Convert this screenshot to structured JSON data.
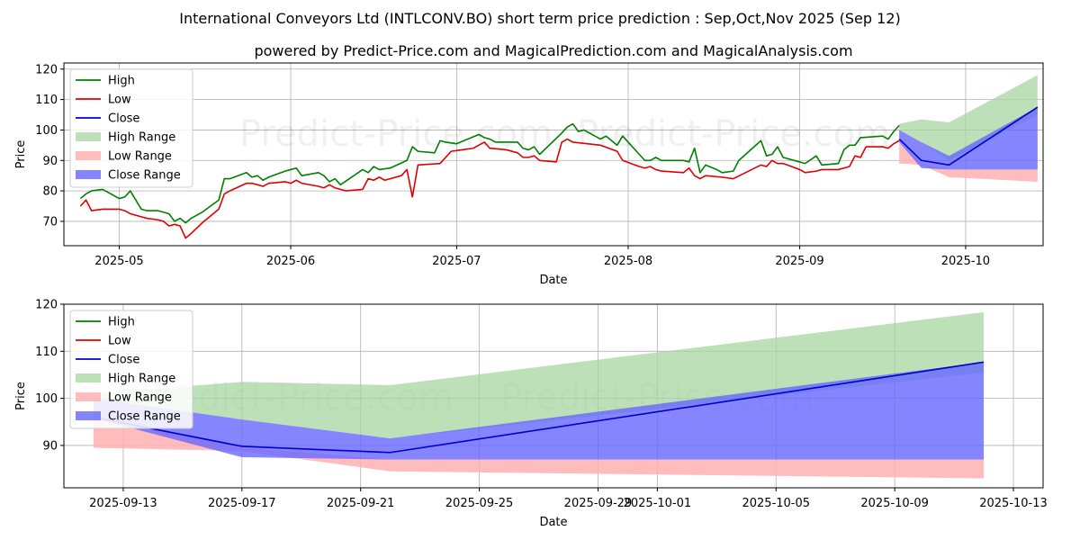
{
  "title": "International Conveyors Ltd (INTLCONV.BO) short term price prediction : Sep,Oct,Nov 2025 (Sep 12)",
  "subtitle": "powered by Predict-Price.com and MagicalPrediction.com and MagicalAnalysis.com",
  "watermark": "Predict-Price.com",
  "colors": {
    "high": "#008000",
    "low": "#e00000",
    "close": "#0000cc",
    "high_range": "#a8d5a2",
    "low_range": "#ffb0b0",
    "close_range": "#6666ff"
  },
  "chart_data": [
    {
      "type": "line",
      "name": "history",
      "xlabel": "Date",
      "ylabel": "Price",
      "xlim": [
        "2025-04-21",
        "2025-10-15"
      ],
      "ylim": [
        62,
        122
      ],
      "yticks": [
        70,
        80,
        90,
        100,
        110,
        120
      ],
      "xticks": [
        {
          "date": "2025-05-01",
          "label": "2025-05"
        },
        {
          "date": "2025-06-01",
          "label": "2025-06"
        },
        {
          "date": "2025-07-01",
          "label": "2025-07"
        },
        {
          "date": "2025-08-01",
          "label": "2025-08"
        },
        {
          "date": "2025-09-01",
          "label": "2025-09"
        },
        {
          "date": "2025-10-01",
          "label": "2025-10"
        }
      ],
      "legend": [
        "High",
        "Low",
        "Close",
        "High Range",
        "Low Range",
        "Close Range"
      ],
      "legend_position": "top-left",
      "grid": true,
      "high": [
        [
          "2025-04-24",
          77.5
        ],
        [
          "2025-04-25",
          79
        ],
        [
          "2025-04-26",
          80
        ],
        [
          "2025-04-28",
          80.5
        ],
        [
          "2025-04-29",
          79.5
        ],
        [
          "2025-05-01",
          77.5
        ],
        [
          "2025-05-02",
          78
        ],
        [
          "2025-05-03",
          80
        ],
        [
          "2025-05-05",
          74
        ],
        [
          "2025-05-06",
          73.5
        ],
        [
          "2025-05-08",
          73.5
        ],
        [
          "2025-05-09",
          73
        ],
        [
          "2025-05-10",
          72.5
        ],
        [
          "2025-05-11",
          70
        ],
        [
          "2025-05-12",
          71
        ],
        [
          "2025-05-13",
          69.5
        ],
        [
          "2025-05-14",
          71
        ],
        [
          "2025-05-16",
          73
        ],
        [
          "2025-05-19",
          77
        ],
        [
          "2025-05-20",
          84
        ],
        [
          "2025-05-21",
          84
        ],
        [
          "2025-05-24",
          86
        ],
        [
          "2025-05-25",
          84.5
        ],
        [
          "2025-05-26",
          85
        ],
        [
          "2025-05-27",
          83.5
        ],
        [
          "2025-05-28",
          84.5
        ],
        [
          "2025-05-31",
          86.5
        ],
        [
          "2025-06-01",
          87
        ],
        [
          "2025-06-02",
          87.5
        ],
        [
          "2025-06-03",
          85
        ],
        [
          "2025-06-06",
          86
        ],
        [
          "2025-06-07",
          85
        ],
        [
          "2025-06-08",
          83
        ],
        [
          "2025-06-09",
          84
        ],
        [
          "2025-06-10",
          82
        ],
        [
          "2025-06-14",
          87
        ],
        [
          "2025-06-15",
          86
        ],
        [
          "2025-06-16",
          88
        ],
        [
          "2025-06-17",
          87
        ],
        [
          "2025-06-19",
          87.5
        ],
        [
          "2025-06-22",
          90
        ],
        [
          "2025-06-23",
          94.5
        ],
        [
          "2025-06-24",
          93
        ],
        [
          "2025-06-27",
          92.5
        ],
        [
          "2025-06-28",
          96.5
        ],
        [
          "2025-06-29",
          96
        ],
        [
          "2025-07-01",
          95.5
        ],
        [
          "2025-07-05",
          98.5
        ],
        [
          "2025-07-06",
          97.5
        ],
        [
          "2025-07-07",
          97
        ],
        [
          "2025-07-08",
          96
        ],
        [
          "2025-07-10",
          96
        ],
        [
          "2025-07-12",
          96
        ],
        [
          "2025-07-13",
          94
        ],
        [
          "2025-07-14",
          93.5
        ],
        [
          "2025-07-15",
          94.5
        ],
        [
          "2025-07-16",
          92
        ],
        [
          "2025-07-20",
          99
        ],
        [
          "2025-07-21",
          101
        ],
        [
          "2025-07-22",
          102
        ],
        [
          "2025-07-23",
          99.5
        ],
        [
          "2025-07-24",
          100
        ],
        [
          "2025-07-27",
          97
        ],
        [
          "2025-07-28",
          98
        ],
        [
          "2025-07-30",
          95
        ],
        [
          "2025-07-31",
          98
        ],
        [
          "2025-08-03",
          92
        ],
        [
          "2025-08-04",
          90
        ],
        [
          "2025-08-05",
          90
        ],
        [
          "2025-08-06",
          91
        ],
        [
          "2025-08-07",
          90
        ],
        [
          "2025-08-11",
          90
        ],
        [
          "2025-08-12",
          89.5
        ],
        [
          "2025-08-13",
          94
        ],
        [
          "2025-08-14",
          86
        ],
        [
          "2025-08-15",
          88.5
        ],
        [
          "2025-08-17",
          87
        ],
        [
          "2025-08-18",
          86
        ],
        [
          "2025-08-20",
          86.5
        ],
        [
          "2025-08-21",
          90
        ],
        [
          "2025-08-25",
          96.5
        ],
        [
          "2025-08-26",
          91.5
        ],
        [
          "2025-08-27",
          92
        ],
        [
          "2025-08-28",
          94.5
        ],
        [
          "2025-08-29",
          91
        ],
        [
          "2025-09-02",
          89
        ],
        [
          "2025-09-04",
          91.5
        ],
        [
          "2025-09-05",
          88.5
        ],
        [
          "2025-09-08",
          89
        ],
        [
          "2025-09-09",
          93.5
        ],
        [
          "2025-09-10",
          95
        ],
        [
          "2025-09-11",
          95
        ],
        [
          "2025-09-12",
          97.5
        ],
        [
          "2025-09-16",
          98
        ],
        [
          "2025-09-17",
          97
        ],
        [
          "2025-09-18",
          99.5
        ],
        [
          "2025-09-19",
          101.5
        ]
      ],
      "low": [
        [
          "2025-04-24",
          75
        ],
        [
          "2025-04-25",
          77
        ],
        [
          "2025-04-26",
          73.5
        ],
        [
          "2025-04-28",
          74
        ],
        [
          "2025-04-29",
          74
        ],
        [
          "2025-05-01",
          74
        ],
        [
          "2025-05-02",
          73.5
        ],
        [
          "2025-05-03",
          72.5
        ],
        [
          "2025-05-05",
          71.5
        ],
        [
          "2025-05-06",
          71
        ],
        [
          "2025-05-08",
          70.5
        ],
        [
          "2025-05-09",
          70
        ],
        [
          "2025-05-10",
          68.5
        ],
        [
          "2025-05-11",
          69
        ],
        [
          "2025-05-12",
          68.5
        ],
        [
          "2025-05-13",
          64.5
        ],
        [
          "2025-05-14",
          66
        ],
        [
          "2025-05-16",
          69.5
        ],
        [
          "2025-05-19",
          74
        ],
        [
          "2025-05-20",
          79
        ],
        [
          "2025-05-21",
          80
        ],
        [
          "2025-05-24",
          82.5
        ],
        [
          "2025-05-25",
          82.5
        ],
        [
          "2025-05-26",
          82
        ],
        [
          "2025-05-27",
          81.5
        ],
        [
          "2025-05-28",
          82.5
        ],
        [
          "2025-05-31",
          83
        ],
        [
          "2025-06-01",
          82.5
        ],
        [
          "2025-06-02",
          83.5
        ],
        [
          "2025-06-03",
          82.5
        ],
        [
          "2025-06-06",
          81.5
        ],
        [
          "2025-06-07",
          81
        ],
        [
          "2025-06-08",
          82
        ],
        [
          "2025-06-09",
          81
        ],
        [
          "2025-06-10",
          80.5
        ],
        [
          "2025-06-11",
          80
        ],
        [
          "2025-06-14",
          80.5
        ],
        [
          "2025-06-15",
          84
        ],
        [
          "2025-06-16",
          83.5
        ],
        [
          "2025-06-17",
          84.5
        ],
        [
          "2025-06-18",
          83.5
        ],
        [
          "2025-06-21",
          85
        ],
        [
          "2025-06-22",
          87
        ],
        [
          "2025-06-23",
          78
        ],
        [
          "2025-06-24",
          88.5
        ],
        [
          "2025-06-28",
          89
        ],
        [
          "2025-06-30",
          93
        ],
        [
          "2025-07-02",
          93.5
        ],
        [
          "2025-07-04",
          94
        ],
        [
          "2025-07-05",
          95
        ],
        [
          "2025-07-06",
          96
        ],
        [
          "2025-07-07",
          94
        ],
        [
          "2025-07-10",
          93.5
        ],
        [
          "2025-07-12",
          92.5
        ],
        [
          "2025-07-13",
          91
        ],
        [
          "2025-07-14",
          91
        ],
        [
          "2025-07-15",
          91.5
        ],
        [
          "2025-07-16",
          90
        ],
        [
          "2025-07-19",
          89.5
        ],
        [
          "2025-07-20",
          96
        ],
        [
          "2025-07-21",
          97
        ],
        [
          "2025-07-22",
          96
        ],
        [
          "2025-07-27",
          95
        ],
        [
          "2025-07-30",
          93
        ],
        [
          "2025-07-31",
          90
        ],
        [
          "2025-08-03",
          88
        ],
        [
          "2025-08-04",
          87.5
        ],
        [
          "2025-08-05",
          88
        ],
        [
          "2025-08-06",
          87
        ],
        [
          "2025-08-07",
          86.5
        ],
        [
          "2025-08-11",
          86
        ],
        [
          "2025-08-12",
          87.5
        ],
        [
          "2025-08-13",
          85
        ],
        [
          "2025-08-14",
          84
        ],
        [
          "2025-08-15",
          85
        ],
        [
          "2025-08-18",
          84.5
        ],
        [
          "2025-08-20",
          84
        ],
        [
          "2025-08-25",
          88.5
        ],
        [
          "2025-08-26",
          88
        ],
        [
          "2025-08-27",
          90
        ],
        [
          "2025-08-28",
          89
        ],
        [
          "2025-08-29",
          89
        ],
        [
          "2025-09-01",
          87
        ],
        [
          "2025-09-02",
          86
        ],
        [
          "2025-09-04",
          86.5
        ],
        [
          "2025-09-05",
          87
        ],
        [
          "2025-09-08",
          87
        ],
        [
          "2025-09-09",
          87.5
        ],
        [
          "2025-09-10",
          88
        ],
        [
          "2025-09-11",
          91.5
        ],
        [
          "2025-09-12",
          91
        ],
        [
          "2025-09-13",
          94.5
        ],
        [
          "2025-09-16",
          94.5
        ],
        [
          "2025-09-17",
          94
        ],
        [
          "2025-09-18",
          95.5
        ],
        [
          "2025-09-19",
          96.5
        ]
      ],
      "forecast": {
        "dates": [
          "2025-09-19",
          "2025-09-23",
          "2025-09-28",
          "2025-10-14"
        ],
        "close": [
          97,
          90,
          88.5,
          107.5
        ],
        "high_range": [
          [
            100,
            102
          ],
          [
            96,
            103.5
          ],
          [
            90,
            102.5
          ],
          [
            105,
            118
          ]
        ],
        "low_range": [
          [
            89,
            96
          ],
          [
            88.5,
            89
          ],
          [
            84.5,
            87
          ],
          [
            83,
            87
          ]
        ],
        "close_range": [
          [
            96,
            100
          ],
          [
            87.5,
            96
          ],
          [
            87,
            91.5
          ],
          [
            87,
            107.5
          ]
        ]
      }
    },
    {
      "type": "line",
      "name": "forecast-zoom",
      "xlabel": "Date",
      "ylabel": "Price",
      "xlim": [
        "2025-09-11",
        "2025-10-14"
      ],
      "ylim": [
        81,
        120
      ],
      "yticks": [
        90,
        100,
        110,
        120
      ],
      "xticks": [
        {
          "date": "2025-09-13",
          "label": "2025-09-13"
        },
        {
          "date": "2025-09-17",
          "label": "2025-09-17"
        },
        {
          "date": "2025-09-21",
          "label": "2025-09-21"
        },
        {
          "date": "2025-09-25",
          "label": "2025-09-25"
        },
        {
          "date": "2025-09-29",
          "label": "2025-09-29"
        },
        {
          "date": "2025-10-01",
          "label": "2025-10-01"
        },
        {
          "date": "2025-10-05",
          "label": "2025-10-05"
        },
        {
          "date": "2025-10-09",
          "label": "2025-10-09"
        },
        {
          "date": "2025-10-13",
          "label": "2025-10-13"
        }
      ],
      "legend": [
        "High",
        "Low",
        "Close",
        "High Range",
        "Low Range",
        "Close Range"
      ],
      "legend_position": "top-left",
      "grid": true,
      "forecast": {
        "dates": [
          "2025-09-12",
          "2025-09-17",
          "2025-09-22",
          "2025-10-12"
        ],
        "close": [
          96,
          89.8,
          88.5,
          107.7
        ],
        "high_range": [
          [
            100,
            101
          ],
          [
            95.5,
            103.5
          ],
          [
            91.5,
            102.8
          ],
          [
            105.5,
            118.3
          ]
        ],
        "low_range": [
          [
            89.5,
            96.5
          ],
          [
            88.8,
            89.5
          ],
          [
            84.5,
            87
          ],
          [
            83,
            87
          ]
        ],
        "close_range": [
          [
            95.8,
            100
          ],
          [
            87.5,
            95.5
          ],
          [
            87,
            91.5
          ],
          [
            87,
            107.7
          ]
        ]
      }
    }
  ]
}
